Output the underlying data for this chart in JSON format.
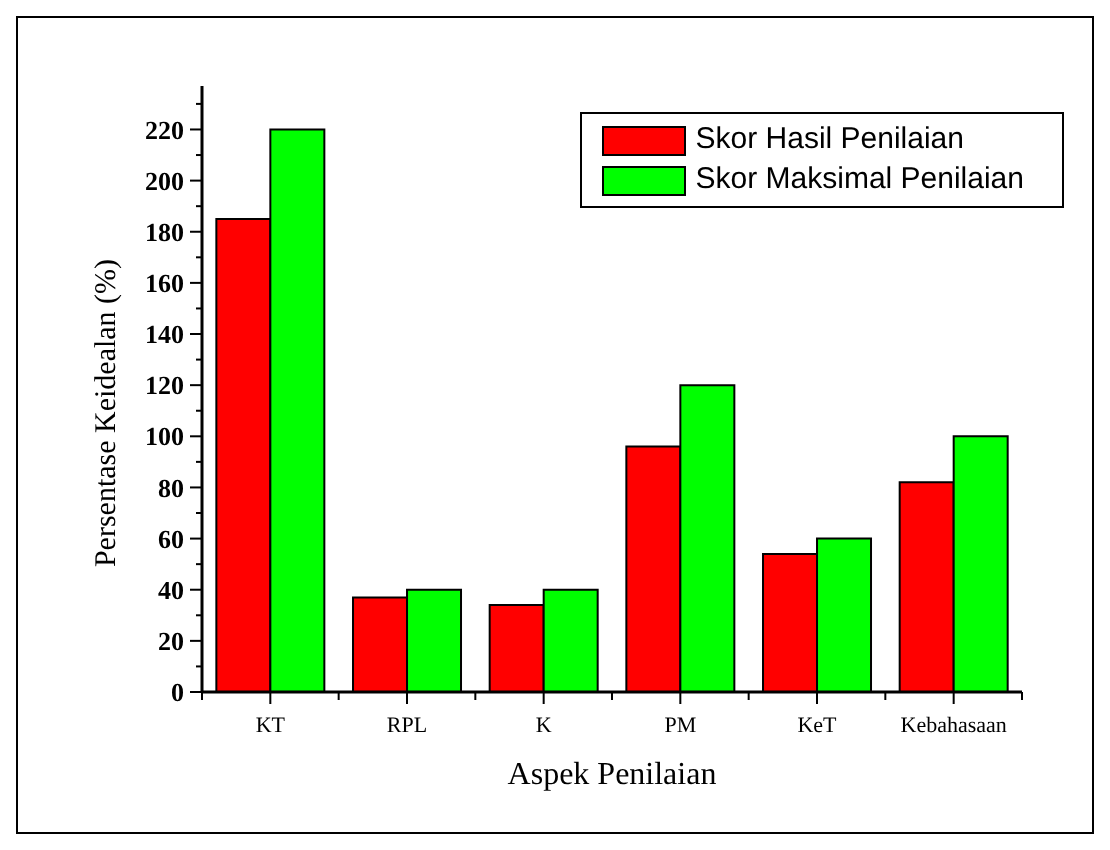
{
  "chart_data": {
    "type": "bar",
    "xlabel": "Aspek Penilaian",
    "ylabel": "Persentase Keidealan (%)",
    "categories": [
      "KT",
      "RPL",
      "K",
      "PM",
      "KeT",
      "Kebahasaan"
    ],
    "series": [
      {
        "name": "Skor Hasil Penilaian",
        "color": "#ff0000",
        "values": [
          185,
          37,
          34,
          96,
          54,
          82
        ]
      },
      {
        "name": "Skor Maksimal Penilaian",
        "color": "#00ff00",
        "values": [
          220,
          40,
          40,
          120,
          60,
          100
        ]
      }
    ],
    "ylim": [
      0,
      237
    ],
    "yticks": [
      0,
      {
        "value": 10,
        "label": null
      },
      20,
      {
        "value": 30,
        "label": null
      },
      40,
      {
        "value": 50,
        "label": null
      },
      60,
      {
        "value": 70,
        "label": null
      },
      80,
      {
        "value": 90,
        "label": null
      },
      100,
      {
        "value": 110,
        "label": null
      },
      120,
      {
        "value": 130,
        "label": null
      },
      140,
      {
        "value": 150,
        "label": null
      },
      160,
      {
        "value": 170,
        "label": null
      },
      180,
      {
        "value": 190,
        "label": null
      },
      200,
      {
        "value": 210,
        "label": null
      },
      220,
      {
        "value": 230,
        "label": null
      }
    ],
    "legend": "top right"
  }
}
